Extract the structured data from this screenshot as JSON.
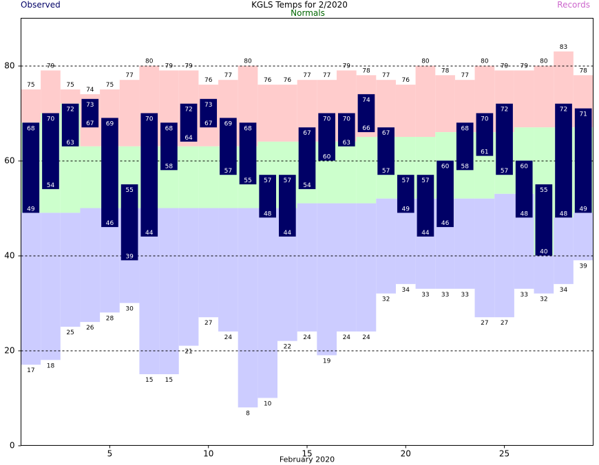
{
  "header": {
    "title": "KGLS Temps for 2/2020",
    "observed_label": "Observed",
    "normals_label": "Normals",
    "records_label": "Records"
  },
  "colors": {
    "observed": "#000066",
    "normals": "#006600",
    "records_text": "#cc66cc",
    "record_band": "#ffcccc",
    "normal_band": "#ccffcc",
    "low_band": "#ccccff",
    "grid": "#000000"
  },
  "chart_data": {
    "type": "bar",
    "title": "KGLS Temps for 2/2020",
    "xlabel": "February 2020",
    "ylabel": "",
    "ylim": [
      0,
      90
    ],
    "xlim": [
      0.5,
      29.5
    ],
    "yticks": [
      0,
      20,
      40,
      60,
      80
    ],
    "xticks": [
      5,
      10,
      15,
      20,
      25
    ],
    "grid": "dashed horizontal lines at 20, 40, 60, 80",
    "days": [
      1,
      2,
      3,
      4,
      5,
      6,
      7,
      8,
      9,
      10,
      11,
      12,
      13,
      14,
      15,
      16,
      17,
      18,
      19,
      20,
      21,
      22,
      23,
      24,
      25,
      26,
      27,
      28,
      29
    ],
    "series": [
      {
        "name": "Records",
        "key": "record_high",
        "values": [
          75,
          79,
          75,
          74,
          75,
          77,
          80,
          79,
          79,
          76,
          77,
          80,
          76,
          76,
          77,
          77,
          79,
          78,
          77,
          76,
          80,
          78,
          77,
          80,
          79,
          79,
          80,
          83,
          78
        ]
      },
      {
        "name": "Normals",
        "key": "normal_high",
        "values": [
          null,
          null,
          null,
          63,
          63,
          63,
          63,
          63,
          63,
          63,
          63,
          63,
          64,
          64,
          64,
          64,
          64,
          65,
          65,
          65,
          65,
          66,
          66,
          66,
          66,
          67,
          67,
          67,
          67
        ]
      },
      {
        "name": "Normals",
        "key": "normal_low",
        "values": [
          49,
          49,
          49,
          50,
          50,
          50,
          50,
          50,
          50,
          50,
          50,
          50,
          50,
          50,
          51,
          51,
          51,
          51,
          52,
          52,
          52,
          52,
          52,
          52,
          53,
          53,
          null,
          null,
          null
        ]
      },
      {
        "name": "Records",
        "key": "record_low",
        "values": [
          17,
          18,
          25,
          26,
          28,
          30,
          15,
          15,
          21,
          27,
          24,
          8,
          10,
          22,
          24,
          19,
          24,
          24,
          32,
          34,
          33,
          33,
          33,
          27,
          27,
          33,
          32,
          34,
          39
        ]
      },
      {
        "name": "Observed",
        "key": "observed_high",
        "values": [
          68,
          70,
          72,
          73,
          69,
          55,
          70,
          68,
          72,
          73,
          69,
          68,
          57,
          57,
          67,
          70,
          70,
          74,
          67,
          57,
          57,
          60,
          68,
          70,
          72,
          60,
          55,
          72,
          71
        ]
      },
      {
        "name": "Observed",
        "key": "observed_low",
        "values": [
          49,
          54,
          63,
          67,
          46,
          39,
          44,
          58,
          64,
          67,
          57,
          55,
          48,
          44,
          54,
          60,
          63,
          66,
          57,
          49,
          44,
          46,
          58,
          61,
          57,
          48,
          40,
          48,
          49
        ]
      }
    ]
  }
}
